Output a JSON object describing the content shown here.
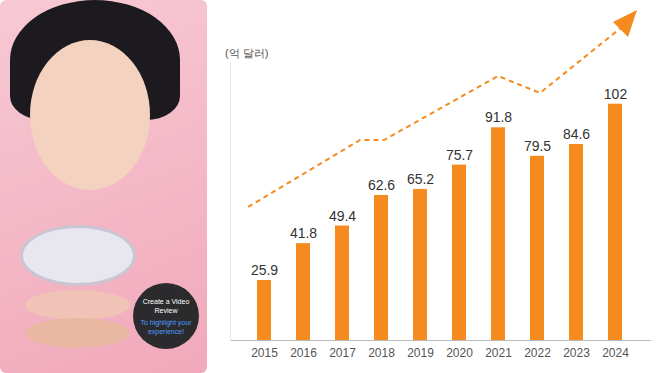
{
  "chart_data": {
    "type": "bar",
    "y_label": "(억 달러)",
    "categories": [
      "2015",
      "2016",
      "2017",
      "2018",
      "2019",
      "2020",
      "2021",
      "2022",
      "2023",
      "2024"
    ],
    "values": [
      25.9,
      41.8,
      49.4,
      62.6,
      65.2,
      75.7,
      91.8,
      79.5,
      84.6,
      102
    ],
    "color": "#f58a1f",
    "ylim": [
      0,
      120
    ],
    "yticks": [],
    "tick_labels": "x",
    "data_labels": true,
    "annotations": [
      "Create a Video Review",
      "To highlight your experience!"
    ]
  }
}
